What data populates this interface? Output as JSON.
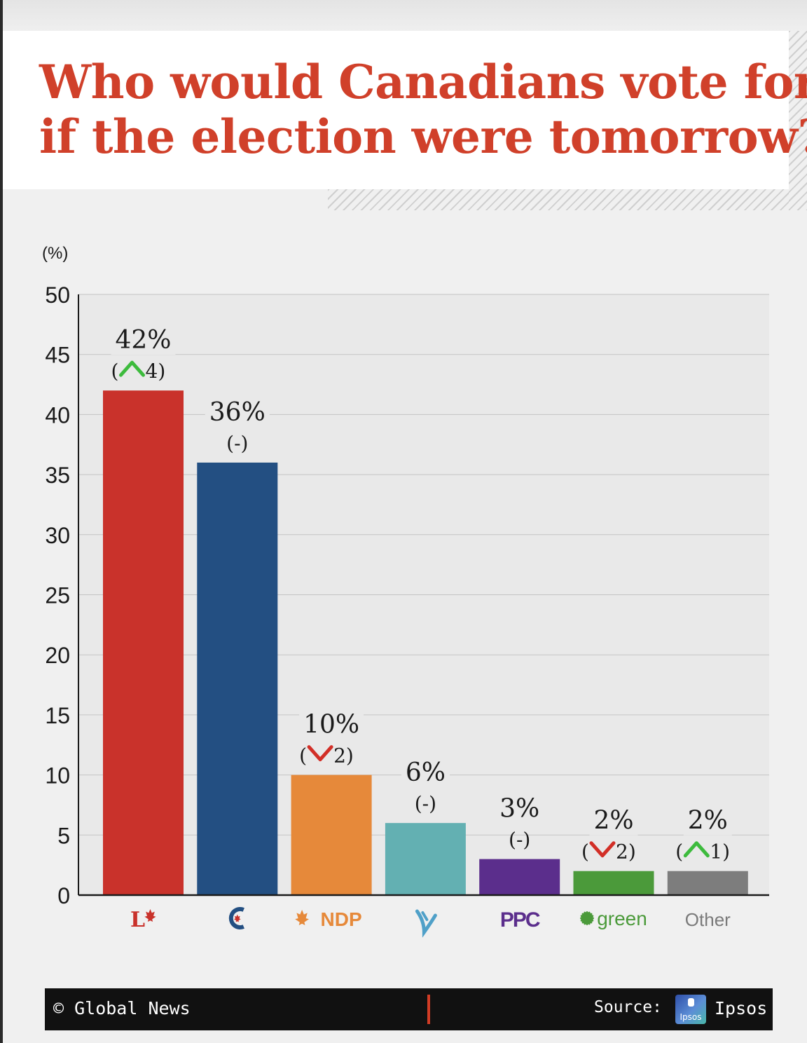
{
  "header": {
    "title_line1": "Who would Canadians vote for",
    "title_line2": "if the election were tomorrow?"
  },
  "chart_data": {
    "type": "bar",
    "ylabel": "(%)",
    "ylim": [
      0,
      50
    ],
    "yticks": [
      0,
      5,
      10,
      15,
      20,
      25,
      30,
      35,
      40,
      45,
      50
    ],
    "grid": true,
    "categories": [
      "Liberal",
      "Conservative",
      "NDP",
      "Bloc Québécois",
      "PPC",
      "Green",
      "Other"
    ],
    "values": [
      42,
      36,
      10,
      6,
      3,
      2,
      2
    ],
    "value_labels": [
      "42%",
      "36%",
      "10%",
      "6%",
      "3%",
      "2%",
      "2%"
    ],
    "changes": [
      {
        "direction": "up",
        "amount": "4"
      },
      {
        "direction": "none",
        "amount": "-"
      },
      {
        "direction": "down",
        "amount": "2"
      },
      {
        "direction": "none",
        "amount": "-"
      },
      {
        "direction": "none",
        "amount": "-"
      },
      {
        "direction": "down",
        "amount": "2"
      },
      {
        "direction": "up",
        "amount": "1"
      }
    ],
    "colors": [
      "#c9322b",
      "#234f82",
      "#e6893a",
      "#63b0b2",
      "#5b2e8c",
      "#4b9a3a",
      "#7d7d7d"
    ],
    "logos": [
      "liberal-logo",
      "conservative-logo",
      "ndp-logo",
      "bloc-logo",
      "ppc-logo",
      "green-logo",
      "other-label"
    ],
    "logo_texts": [
      "L",
      "C",
      "NDP",
      "",
      "PPC",
      "green",
      "Other"
    ],
    "change_colors": {
      "up": "#3dbb3d",
      "down": "#d22f27"
    }
  },
  "footer": {
    "copyright": "© Global News",
    "source_label": "Source:",
    "source_name": "Ipsos",
    "logo_text": "Ipsos"
  }
}
